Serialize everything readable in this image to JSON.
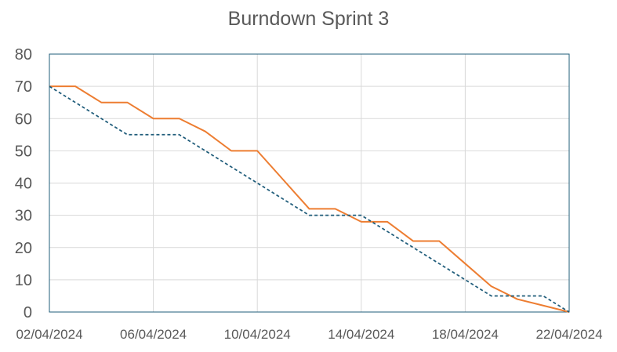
{
  "chart_data": {
    "type": "line",
    "title": "Burndown Sprint 3",
    "xlabel": "",
    "ylabel": "",
    "ylim": [
      0,
      80
    ],
    "yticks": [
      "0",
      "10",
      "20",
      "30",
      "40",
      "50",
      "60",
      "70",
      "80"
    ],
    "xlim": [
      "02/04/2024",
      "22/04/2024"
    ],
    "xticks": [
      "02/04/2024",
      "06/04/2024",
      "10/04/2024",
      "14/04/2024",
      "18/04/2024",
      "22/04/2024"
    ],
    "grid": true,
    "legend": "none",
    "series": [
      {
        "color": "#ED7D31",
        "line_style": "solid",
        "points": [
          [
            "02/04/2024",
            70
          ],
          [
            "03/04/2024",
            70
          ],
          [
            "04/04/2024",
            65
          ],
          [
            "05/04/2024",
            65
          ],
          [
            "06/04/2024",
            60
          ],
          [
            "07/04/2024",
            60
          ],
          [
            "08/04/2024",
            56
          ],
          [
            "09/04/2024",
            50
          ],
          [
            "10/04/2024",
            50
          ],
          [
            "11/04/2024",
            41
          ],
          [
            "12/04/2024",
            32
          ],
          [
            "13/04/2024",
            32
          ],
          [
            "14/04/2024",
            28
          ],
          [
            "15/04/2024",
            28
          ],
          [
            "16/04/2024",
            22
          ],
          [
            "17/04/2024",
            22
          ],
          [
            "18/04/2024",
            15
          ],
          [
            "19/04/2024",
            8
          ],
          [
            "20/04/2024",
            4
          ],
          [
            "21/04/2024",
            2
          ],
          [
            "22/04/2024",
            0
          ]
        ]
      },
      {
        "color": "#1F5C7A",
        "line_style": "dashed",
        "points": [
          [
            "02/04/2024",
            70
          ],
          [
            "03/04/2024",
            65
          ],
          [
            "04/04/2024",
            60
          ],
          [
            "05/04/2024",
            55
          ],
          [
            "06/04/2024",
            55
          ],
          [
            "07/04/2024",
            55
          ],
          [
            "08/04/2024",
            50
          ],
          [
            "09/04/2024",
            45
          ],
          [
            "10/04/2024",
            40
          ],
          [
            "11/04/2024",
            35
          ],
          [
            "12/04/2024",
            30
          ],
          [
            "13/04/2024",
            30
          ],
          [
            "14/04/2024",
            30
          ],
          [
            "15/04/2024",
            25
          ],
          [
            "16/04/2024",
            20
          ],
          [
            "17/04/2024",
            15
          ],
          [
            "18/04/2024",
            10
          ],
          [
            "19/04/2024",
            5
          ],
          [
            "20/04/2024",
            5
          ],
          [
            "21/04/2024",
            5
          ],
          [
            "22/04/2024",
            0
          ]
        ]
      }
    ]
  },
  "colors": {
    "grid": "#D9D9D9",
    "axis": "#1F5C7A",
    "text": "#595959"
  }
}
